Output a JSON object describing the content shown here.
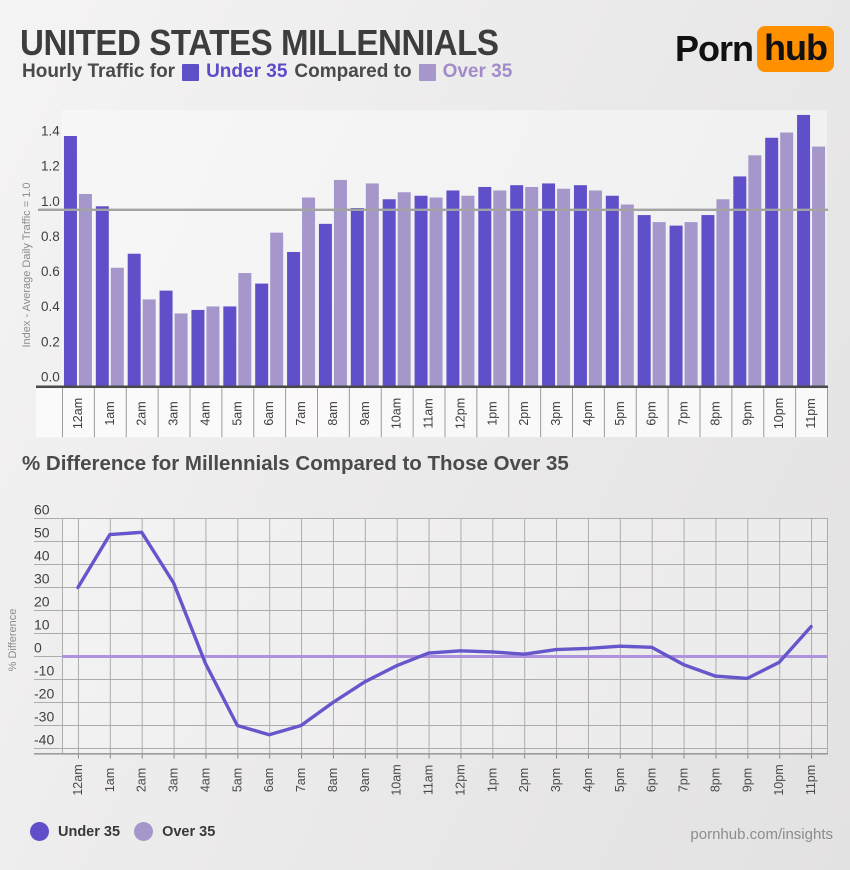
{
  "header": {
    "title": "UNITED STATES MILLENNIALS",
    "subtitle_prefix": "Hourly Traffic for",
    "subtitle_under_label": "Under 35",
    "subtitle_middle": "Compared to",
    "subtitle_over_label": "Over 35",
    "logo_part1": "Porn",
    "logo_part2": "hub"
  },
  "colors": {
    "under35": "#5f50c9",
    "over35": "#a697cb",
    "under35_text": "#5b4bc9",
    "over35_text": "#a18cc9",
    "line_curve": "#6557cb",
    "zero_line": "#af93da",
    "reference_gray": "#a3a3a3",
    "axis_dark": "#4a4a4a",
    "grid": "#acacac",
    "tick_text": "#3f3f3f",
    "muted_text": "#8c8c8c",
    "logo_orange": "#ff9000"
  },
  "chart_data": [
    {
      "type": "bar",
      "title": "Hourly Traffic for Under 35 Compared to Over 35",
      "categories": [
        "12am",
        "1am",
        "2am",
        "3am",
        "4am",
        "5am",
        "6am",
        "7am",
        "8am",
        "9am",
        "10am",
        "11am",
        "12pm",
        "1pm",
        "2pm",
        "3pm",
        "4pm",
        "5pm",
        "6pm",
        "7pm",
        "8pm",
        "9pm",
        "10pm",
        "11pm"
      ],
      "series": [
        {
          "name": "Under 35",
          "values": [
            1.42,
            1.02,
            0.75,
            0.54,
            0.43,
            0.45,
            0.58,
            0.76,
            0.92,
            1.01,
            1.06,
            1.08,
            1.11,
            1.13,
            1.14,
            1.15,
            1.14,
            1.08,
            0.97,
            0.91,
            0.97,
            1.19,
            1.41,
            1.54
          ]
        },
        {
          "name": "Over 35",
          "values": [
            1.09,
            0.67,
            0.49,
            0.41,
            0.45,
            0.64,
            0.87,
            1.07,
            1.17,
            1.15,
            1.1,
            1.07,
            1.08,
            1.11,
            1.13,
            1.12,
            1.11,
            1.03,
            0.93,
            0.93,
            1.06,
            1.31,
            1.44,
            1.36
          ]
        }
      ],
      "ylabel": "Index - Average Daily Traffic = 1.0",
      "yticks": [
        0.0,
        0.2,
        0.4,
        0.6,
        0.8,
        1.0,
        1.2,
        1.4
      ],
      "reference_line": 1.0,
      "ylim": [
        0,
        1.56
      ],
      "grid": false,
      "legend_position": "top-subtitle"
    },
    {
      "type": "line",
      "title": "% Difference for Millennials Compared to Those Over 35",
      "categories": [
        "12am",
        "1am",
        "2am",
        "3am",
        "4am",
        "5am",
        "6am",
        "7am",
        "8am",
        "9am",
        "10am",
        "11am",
        "12pm",
        "1pm",
        "2pm",
        "3pm",
        "4pm",
        "5pm",
        "6pm",
        "7pm",
        "8pm",
        "9pm",
        "10pm",
        "11pm"
      ],
      "values": [
        30,
        53,
        54,
        32,
        -3,
        -30,
        -34,
        -30,
        -20,
        -11,
        -4,
        1.5,
        2.5,
        2,
        1,
        3,
        3.5,
        4.5,
        4,
        -3.5,
        -8.5,
        -9.5,
        -2.5,
        13
      ],
      "ylabel": "% Difference",
      "yticks": [
        60,
        50,
        40,
        30,
        20,
        10,
        0,
        -10,
        -20,
        -30,
        -40
      ],
      "zero_line": 0,
      "ylim": [
        -42,
        60
      ],
      "grid": true,
      "legend_position": "bottom"
    }
  ],
  "footer": {
    "legend_under": "Under 35",
    "legend_over": "Over 35",
    "site": "pornhub.com/insights"
  }
}
